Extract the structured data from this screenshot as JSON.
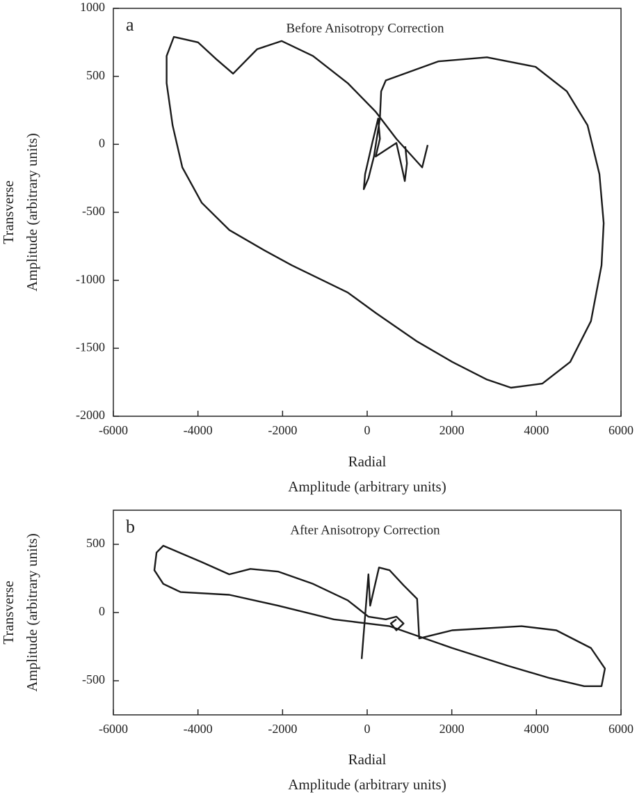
{
  "chart_data": [
    {
      "type": "line",
      "panel_label": "a",
      "title": "Before Anisotropy Correction",
      "xlabel": [
        "Radial",
        "Amplitude (arbitrary units)"
      ],
      "ylabel": [
        "Transverse",
        "Amplitude (arbitrary units)"
      ],
      "xlim": [
        -6000,
        6000
      ],
      "ylim": [
        -2000,
        1000
      ],
      "xticks": [
        -6000,
        -4000,
        -2000,
        0,
        2000,
        4000,
        6000
      ],
      "yticks": [
        1000,
        500,
        0,
        -500,
        -1000,
        -1500,
        -2000
      ],
      "series": [
        {
          "color": "#1a1a1a",
          "x": [
            1430,
            1300,
            690,
            200,
            -460,
            -1280,
            -2020,
            -2600,
            -3170,
            -3580,
            -4000,
            -4570,
            -4740,
            -4740,
            -4600,
            -4370,
            -3910,
            -3260,
            -2430,
            -1780,
            -1120,
            -460,
            200,
            1180,
            2010,
            2830,
            3400,
            4140,
            4800,
            5290,
            5540,
            5590,
            5490,
            5210,
            4720,
            3980,
            2830,
            1680,
            440,
            330,
            300,
            160,
            30,
            -80,
            -50,
            120,
            260,
            300,
            200,
            690,
            820,
            890,
            940,
            900
          ],
          "values": [
            -5,
            -170,
            40,
            240,
            450,
            650,
            760,
            700,
            520,
            630,
            750,
            790,
            650,
            450,
            140,
            -170,
            -430,
            -630,
            -780,
            -890,
            -990,
            -1090,
            -1240,
            -1450,
            -1600,
            -1730,
            -1790,
            -1760,
            -1600,
            -1300,
            -890,
            -580,
            -220,
            140,
            390,
            570,
            640,
            610,
            470,
            390,
            190,
            -90,
            -250,
            -330,
            -220,
            10,
            190,
            40,
            -90,
            10,
            -170,
            -270,
            -140,
            -15
          ]
        }
      ]
    },
    {
      "type": "line",
      "panel_label": "b",
      "title": "After Anisotropy Correction",
      "xlabel": [
        "Radial",
        "Amplitude (arbitrary units)"
      ],
      "ylabel": [
        "Transverse",
        "Amplitude (arbitrary units)"
      ],
      "xlim": [
        -6000,
        6000
      ],
      "ylim": [
        -750,
        750
      ],
      "xticks": [
        -6000,
        -4000,
        -2000,
        0,
        2000,
        4000,
        6000
      ],
      "yticks": [
        500,
        0,
        -500
      ],
      "series": [
        {
          "color": "#1a1a1a",
          "x": [
            -130,
            30,
            70,
            280,
            530,
            860,
            1180,
            1230,
            2010,
            3650,
            4470,
            5290,
            5620,
            5540,
            5130,
            4310,
            3320,
            2010,
            530,
            -790,
            -2100,
            -3260,
            -4410,
            -4820,
            -5030,
            -4980,
            -4820,
            -3910,
            -3260,
            -2760,
            -2100,
            -1280,
            -460,
            30,
            440,
            690,
            860,
            690,
            560,
            690
          ],
          "values": [
            -340,
            280,
            50,
            330,
            310,
            200,
            100,
            -190,
            -130,
            -100,
            -130,
            -260,
            -410,
            -540,
            -540,
            -480,
            -390,
            -260,
            -100,
            -50,
            50,
            130,
            150,
            210,
            310,
            440,
            490,
            370,
            280,
            320,
            300,
            210,
            90,
            -30,
            -50,
            -30,
            -80,
            -130,
            -80,
            -50
          ]
        }
      ]
    }
  ]
}
